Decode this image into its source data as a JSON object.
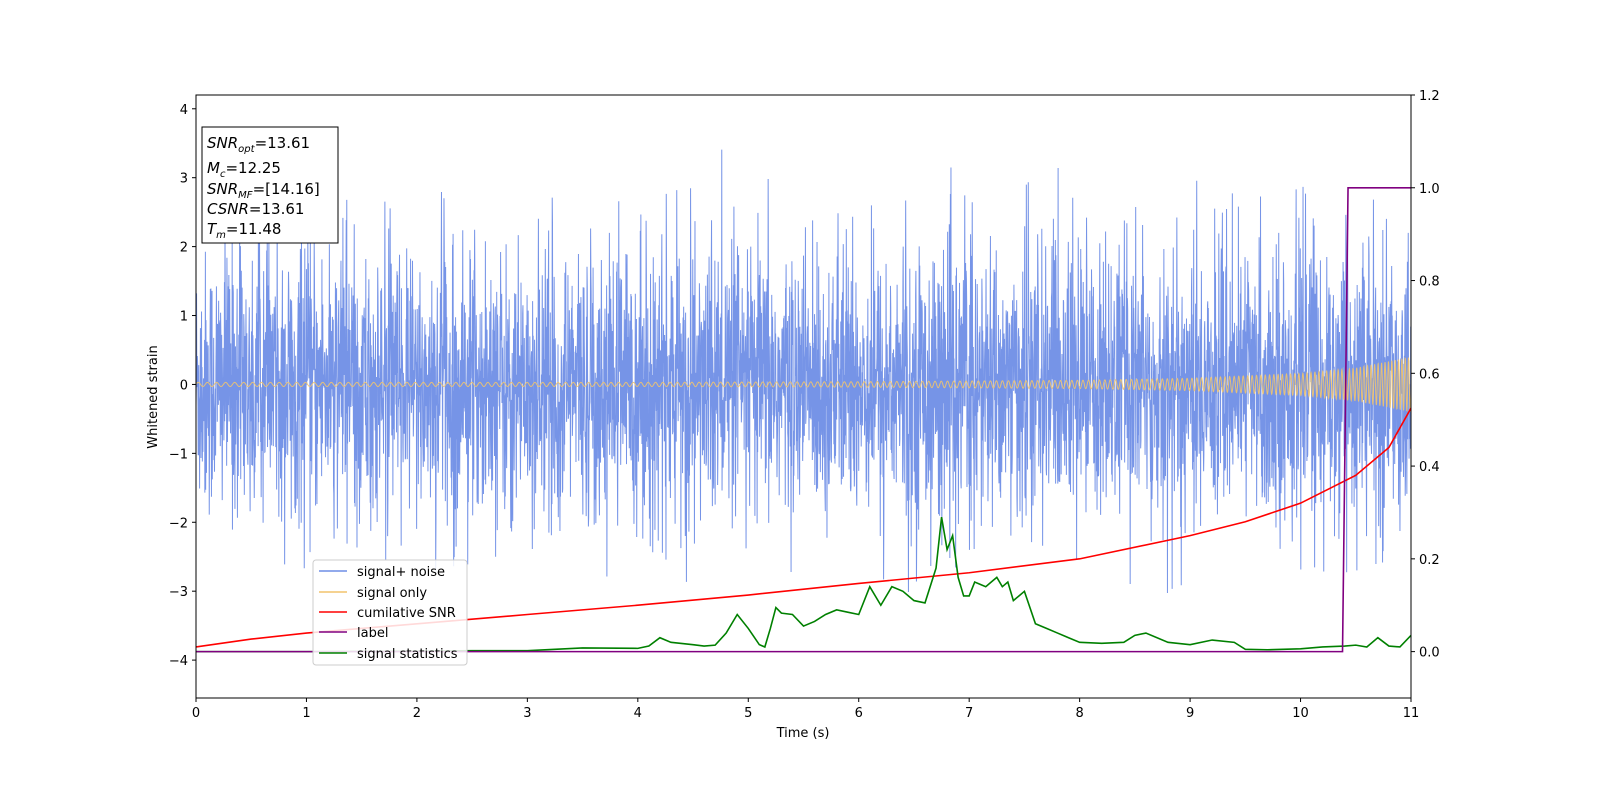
{
  "chart_data": {
    "type": "line",
    "xlabel": "Time (s)",
    "ylabel": "Whitened strain",
    "xlim": [
      0,
      11
    ],
    "ylim": [
      -4.55,
      4.2
    ],
    "y2lim": [
      -0.1,
      1.2
    ],
    "x_ticks": [
      0,
      1,
      2,
      3,
      4,
      5,
      6,
      7,
      8,
      9,
      10,
      11
    ],
    "x_tick_labels": [
      "0",
      "1",
      "2",
      "3",
      "4",
      "5",
      "6",
      "7",
      "8",
      "9",
      "10",
      "11"
    ],
    "y_ticks": [
      -4,
      -3,
      -2,
      -1,
      0,
      1,
      2,
      3,
      4
    ],
    "y_tick_labels": [
      "−4",
      "−3",
      "−2",
      "−1",
      "0",
      "1",
      "2",
      "3",
      "4"
    ],
    "y2_ticks": [
      0.0,
      0.2,
      0.4,
      0.6,
      0.8,
      1.0,
      1.2
    ],
    "y2_tick_labels": [
      "0.0",
      "0.2",
      "0.4",
      "0.6",
      "0.8",
      "1.0",
      "1.2"
    ],
    "grid": false,
    "legend_position": "lower-left",
    "annotation": {
      "lines": [
        {
          "base": "SNR",
          "sub": "opt",
          "value": "=13.61"
        },
        {
          "base": "M",
          "sub": "c",
          "value": "=12.25"
        },
        {
          "base": "SNR",
          "sub": "MF",
          "value": "=[14.16]"
        },
        {
          "base": "CSNR",
          "sub": "",
          "value": "=13.61"
        },
        {
          "base": "T",
          "sub": "m",
          "value": "=11.48"
        }
      ]
    },
    "series": [
      {
        "name": "signal+ noise",
        "axis": "left",
        "color": "#6f8ee6",
        "kind": "noise",
        "envelope_x": [
          0,
          1,
          2,
          3,
          4,
          5,
          6,
          7,
          8,
          9,
          10,
          11
        ],
        "envelope_upper": [
          2.3,
          2.7,
          3.2,
          2.8,
          2.7,
          3.8,
          3.45,
          3.1,
          3.2,
          3.05,
          3.0,
          3.2
        ],
        "envelope_lower": [
          -2.6,
          -2.7,
          -2.7,
          -2.8,
          -2.9,
          -3.0,
          -3.0,
          -3.2,
          -3.3,
          -3.3,
          -2.9,
          -2.6
        ]
      },
      {
        "name": "signal only",
        "axis": "left",
        "color": "#f2c46d",
        "kind": "chirp",
        "amplitude_x": [
          0,
          2,
          4,
          6,
          8,
          9,
          10,
          10.5,
          11
        ],
        "amplitude": [
          0.03,
          0.03,
          0.03,
          0.04,
          0.06,
          0.09,
          0.16,
          0.24,
          0.4
        ]
      },
      {
        "name": "cumilative SNR",
        "axis": "right",
        "color": "#ff0000",
        "kind": "line",
        "x": [
          0,
          0.5,
          1,
          2,
          3,
          4,
          5,
          6,
          7,
          8,
          9,
          9.5,
          10,
          10.5,
          10.8,
          11
        ],
        "y": [
          0.01,
          0.027,
          0.04,
          0.06,
          0.08,
          0.1,
          0.122,
          0.147,
          0.17,
          0.2,
          0.25,
          0.28,
          0.32,
          0.38,
          0.44,
          0.525
        ]
      },
      {
        "name": "label",
        "axis": "right",
        "color": "#800080",
        "kind": "line",
        "x": [
          0,
          10.38,
          10.43,
          11
        ],
        "y": [
          0,
          0,
          1,
          1
        ]
      },
      {
        "name": "signal statistics",
        "axis": "right",
        "color": "#008000",
        "kind": "line",
        "x": [
          0,
          1,
          2,
          2.5,
          3,
          3.5,
          4,
          4.1,
          4.2,
          4.3,
          4.5,
          4.6,
          4.7,
          4.8,
          4.9,
          5.0,
          5.1,
          5.15,
          5.2,
          5.25,
          5.3,
          5.4,
          5.5,
          5.6,
          5.7,
          5.8,
          5.9,
          6.0,
          6.1,
          6.2,
          6.3,
          6.4,
          6.5,
          6.6,
          6.7,
          6.75,
          6.8,
          6.85,
          6.9,
          6.95,
          7.0,
          7.05,
          7.1,
          7.15,
          7.2,
          7.25,
          7.3,
          7.35,
          7.4,
          7.45,
          7.5,
          7.6,
          7.7,
          7.8,
          7.9,
          8.0,
          8.2,
          8.4,
          8.5,
          8.6,
          8.8,
          9.0,
          9.2,
          9.4,
          9.5,
          9.7,
          10.0,
          10.2,
          10.4,
          10.5,
          10.6,
          10.7,
          10.8,
          10.9,
          11.0
        ],
        "y": [
          0,
          0,
          0.001,
          0.002,
          0.002,
          0.008,
          0.007,
          0.012,
          0.03,
          0.02,
          0.015,
          0.012,
          0.014,
          0.04,
          0.08,
          0.05,
          0.015,
          0.01,
          0.05,
          0.095,
          0.083,
          0.08,
          0.055,
          0.065,
          0.08,
          0.09,
          0.085,
          0.08,
          0.14,
          0.1,
          0.14,
          0.13,
          0.11,
          0.105,
          0.18,
          0.29,
          0.22,
          0.25,
          0.16,
          0.12,
          0.12,
          0.15,
          0.145,
          0.14,
          0.15,
          0.16,
          0.14,
          0.15,
          0.11,
          0.12,
          0.13,
          0.06,
          0.05,
          0.04,
          0.03,
          0.02,
          0.018,
          0.02,
          0.035,
          0.04,
          0.02,
          0.015,
          0.025,
          0.02,
          0.005,
          0.004,
          0.006,
          0.01,
          0.012,
          0.014,
          0.01,
          0.03,
          0.012,
          0.01,
          0.035
        ]
      }
    ]
  }
}
